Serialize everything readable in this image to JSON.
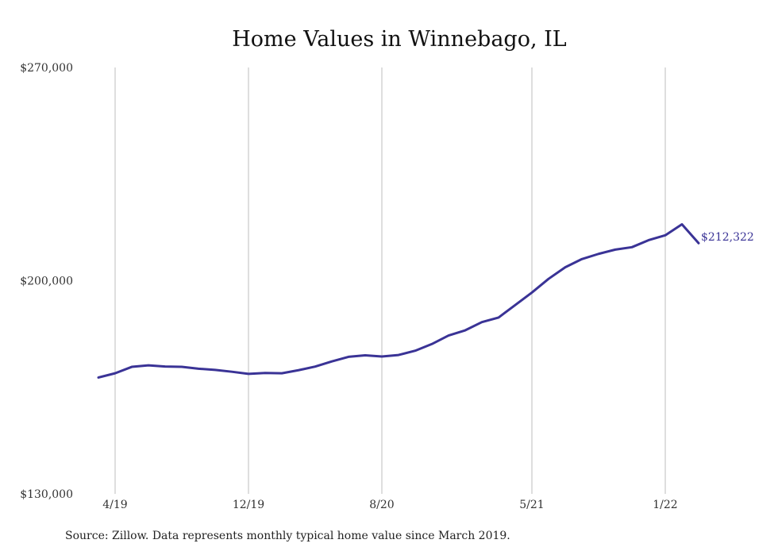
{
  "chart_data": {
    "type": "line",
    "title": "Home Values in Winnebago, IL",
    "xlabel": "",
    "ylabel": "",
    "ylim": [
      130000,
      270000
    ],
    "yticks": [
      "$270,000",
      "$200,000",
      "$130,000"
    ],
    "ytick_values": [
      270000,
      200000,
      130000
    ],
    "xticks": [
      "4/19",
      "12/19",
      "8/20",
      "5/21",
      "1/22"
    ],
    "xtick_values": [
      "2019-04",
      "2019-12",
      "2020-08",
      "2021-05",
      "2022-01"
    ],
    "grid": "vertical",
    "x": [
      "2019-03",
      "2019-04",
      "2019-05",
      "2019-06",
      "2019-07",
      "2019-08",
      "2019-09",
      "2019-10",
      "2019-11",
      "2019-12",
      "2020-01",
      "2020-02",
      "2020-03",
      "2020-04",
      "2020-05",
      "2020-06",
      "2020-07",
      "2020-08",
      "2020-09",
      "2020-10",
      "2020-11",
      "2020-12",
      "2021-01",
      "2021-02",
      "2021-03",
      "2021-04",
      "2021-05",
      "2021-06",
      "2021-07",
      "2021-08",
      "2021-09",
      "2021-10",
      "2021-11",
      "2021-12",
      "2022-01",
      "2022-02",
      "2022-03"
    ],
    "series": [
      {
        "values": [
          168200,
          169600,
          171700,
          172200,
          171800,
          171700,
          171100,
          170700,
          170100,
          169400,
          169700,
          169600,
          170600,
          171800,
          173500,
          175000,
          175500,
          175100,
          175600,
          177000,
          179200,
          182000,
          183700,
          186400,
          187900,
          192000,
          196100,
          200600,
          204400,
          207100,
          208800,
          210200,
          211000,
          213300,
          214900,
          218500,
          212322
        ],
        "end_label": "$212,322",
        "color": "#3a3396"
      }
    ]
  },
  "source": "Source: Zillow. Data represents monthly typical home value since March 2019."
}
